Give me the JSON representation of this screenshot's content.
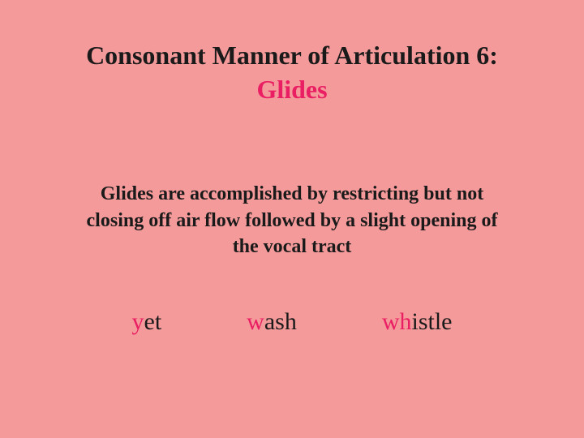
{
  "slide": {
    "background_color": "#f59a9a",
    "title": {
      "line1": "Consonant Manner of Articulation 6:",
      "line2": "Glides",
      "line1_color": "#1a1a1a",
      "line2_color": "#e91e63",
      "font_family": "Comic Sans MS",
      "font_size_pt": 24,
      "font_weight": "bold"
    },
    "body": {
      "text": "Glides are accomplished by restricting but not closing off air flow followed by a slight opening of the vocal tract",
      "color": "#1a1a1a",
      "font_size_pt": 18,
      "font_weight": "bold"
    },
    "examples": [
      {
        "highlight": "y",
        "rest": "et"
      },
      {
        "highlight": "w",
        "rest": "ash"
      },
      {
        "highlight": "wh",
        "rest": "istle"
      }
    ],
    "example_style": {
      "highlight_color": "#e91e63",
      "rest_color": "#1a1a1a",
      "font_size_pt": 22,
      "font_family": "Times New Roman"
    }
  }
}
